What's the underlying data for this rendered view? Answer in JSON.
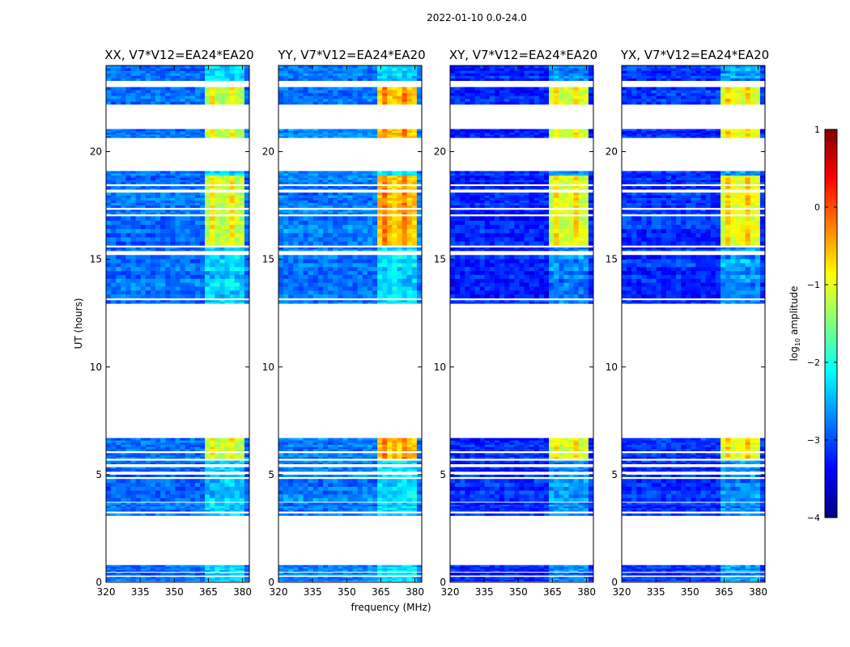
{
  "figure_title": "2022-01-10 0.0-24.0",
  "chart_data": {
    "type": "heatmap",
    "title": "2022-01-10 0.0-24.0",
    "xlabel": "frequency (MHz)",
    "ylabel": "UT (hours)",
    "xlim": [
      320,
      383
    ],
    "ylim": [
      0,
      24
    ],
    "x_ticks": [
      320,
      335,
      350,
      365,
      380
    ],
    "y_ticks": [
      0,
      5,
      10,
      15,
      20
    ],
    "colorbar": {
      "label_prefix": "log",
      "label_sub": "10",
      "label_suffix": " amplitude",
      "range": [
        -4,
        1
      ],
      "ticks": [
        1,
        0,
        -1,
        -2,
        -3,
        -4
      ],
      "tick_labels": [
        "1",
        "0",
        "−1",
        "−2",
        "−3",
        "−4"
      ],
      "colormap": "jet"
    },
    "panels": [
      {
        "name": "xx",
        "title": "XX, V7*V12=EA24*EA20",
        "noise_level": -2.85,
        "rfi_level": -1.2
      },
      {
        "name": "yy",
        "title": "YY, V7*V12=EA24*EA20",
        "noise_level": -2.75,
        "rfi_level": -0.6
      },
      {
        "name": "xy",
        "title": "XY, V7*V12=EA24*EA20",
        "noise_level": -3.2,
        "rfi_level": -1.1
      },
      {
        "name": "yx",
        "title": "YX, V7*V12=EA24*EA20",
        "noise_level": -3.15,
        "rfi_level": -1.0
      }
    ],
    "observed_time_ranges_hours": [
      [
        0.05,
        0.25
      ],
      [
        0.33,
        0.45
      ],
      [
        0.5,
        0.8
      ],
      [
        3.1,
        3.2
      ],
      [
        3.3,
        3.7
      ],
      [
        3.75,
        4.8
      ],
      [
        4.9,
        5.0
      ],
      [
        5.15,
        5.35
      ],
      [
        5.5,
        5.65
      ],
      [
        5.75,
        6.0
      ],
      [
        6.1,
        6.7
      ],
      [
        12.95,
        13.1
      ],
      [
        13.2,
        15.2
      ],
      [
        15.4,
        15.55
      ],
      [
        15.65,
        17.0
      ],
      [
        17.1,
        17.3
      ],
      [
        17.4,
        18.1
      ],
      [
        18.25,
        18.4
      ],
      [
        18.5,
        19.1
      ],
      [
        20.65,
        21.05
      ],
      [
        22.2,
        23.0
      ],
      [
        23.3,
        24.0
      ]
    ],
    "rfi_frequency_band_mhz": [
      362,
      381
    ],
    "rfi_time_ranges_hours": [
      [
        5.7,
        6.7
      ],
      [
        15.6,
        18.9
      ],
      [
        20.7,
        21.0
      ],
      [
        22.2,
        23.0
      ]
    ]
  }
}
